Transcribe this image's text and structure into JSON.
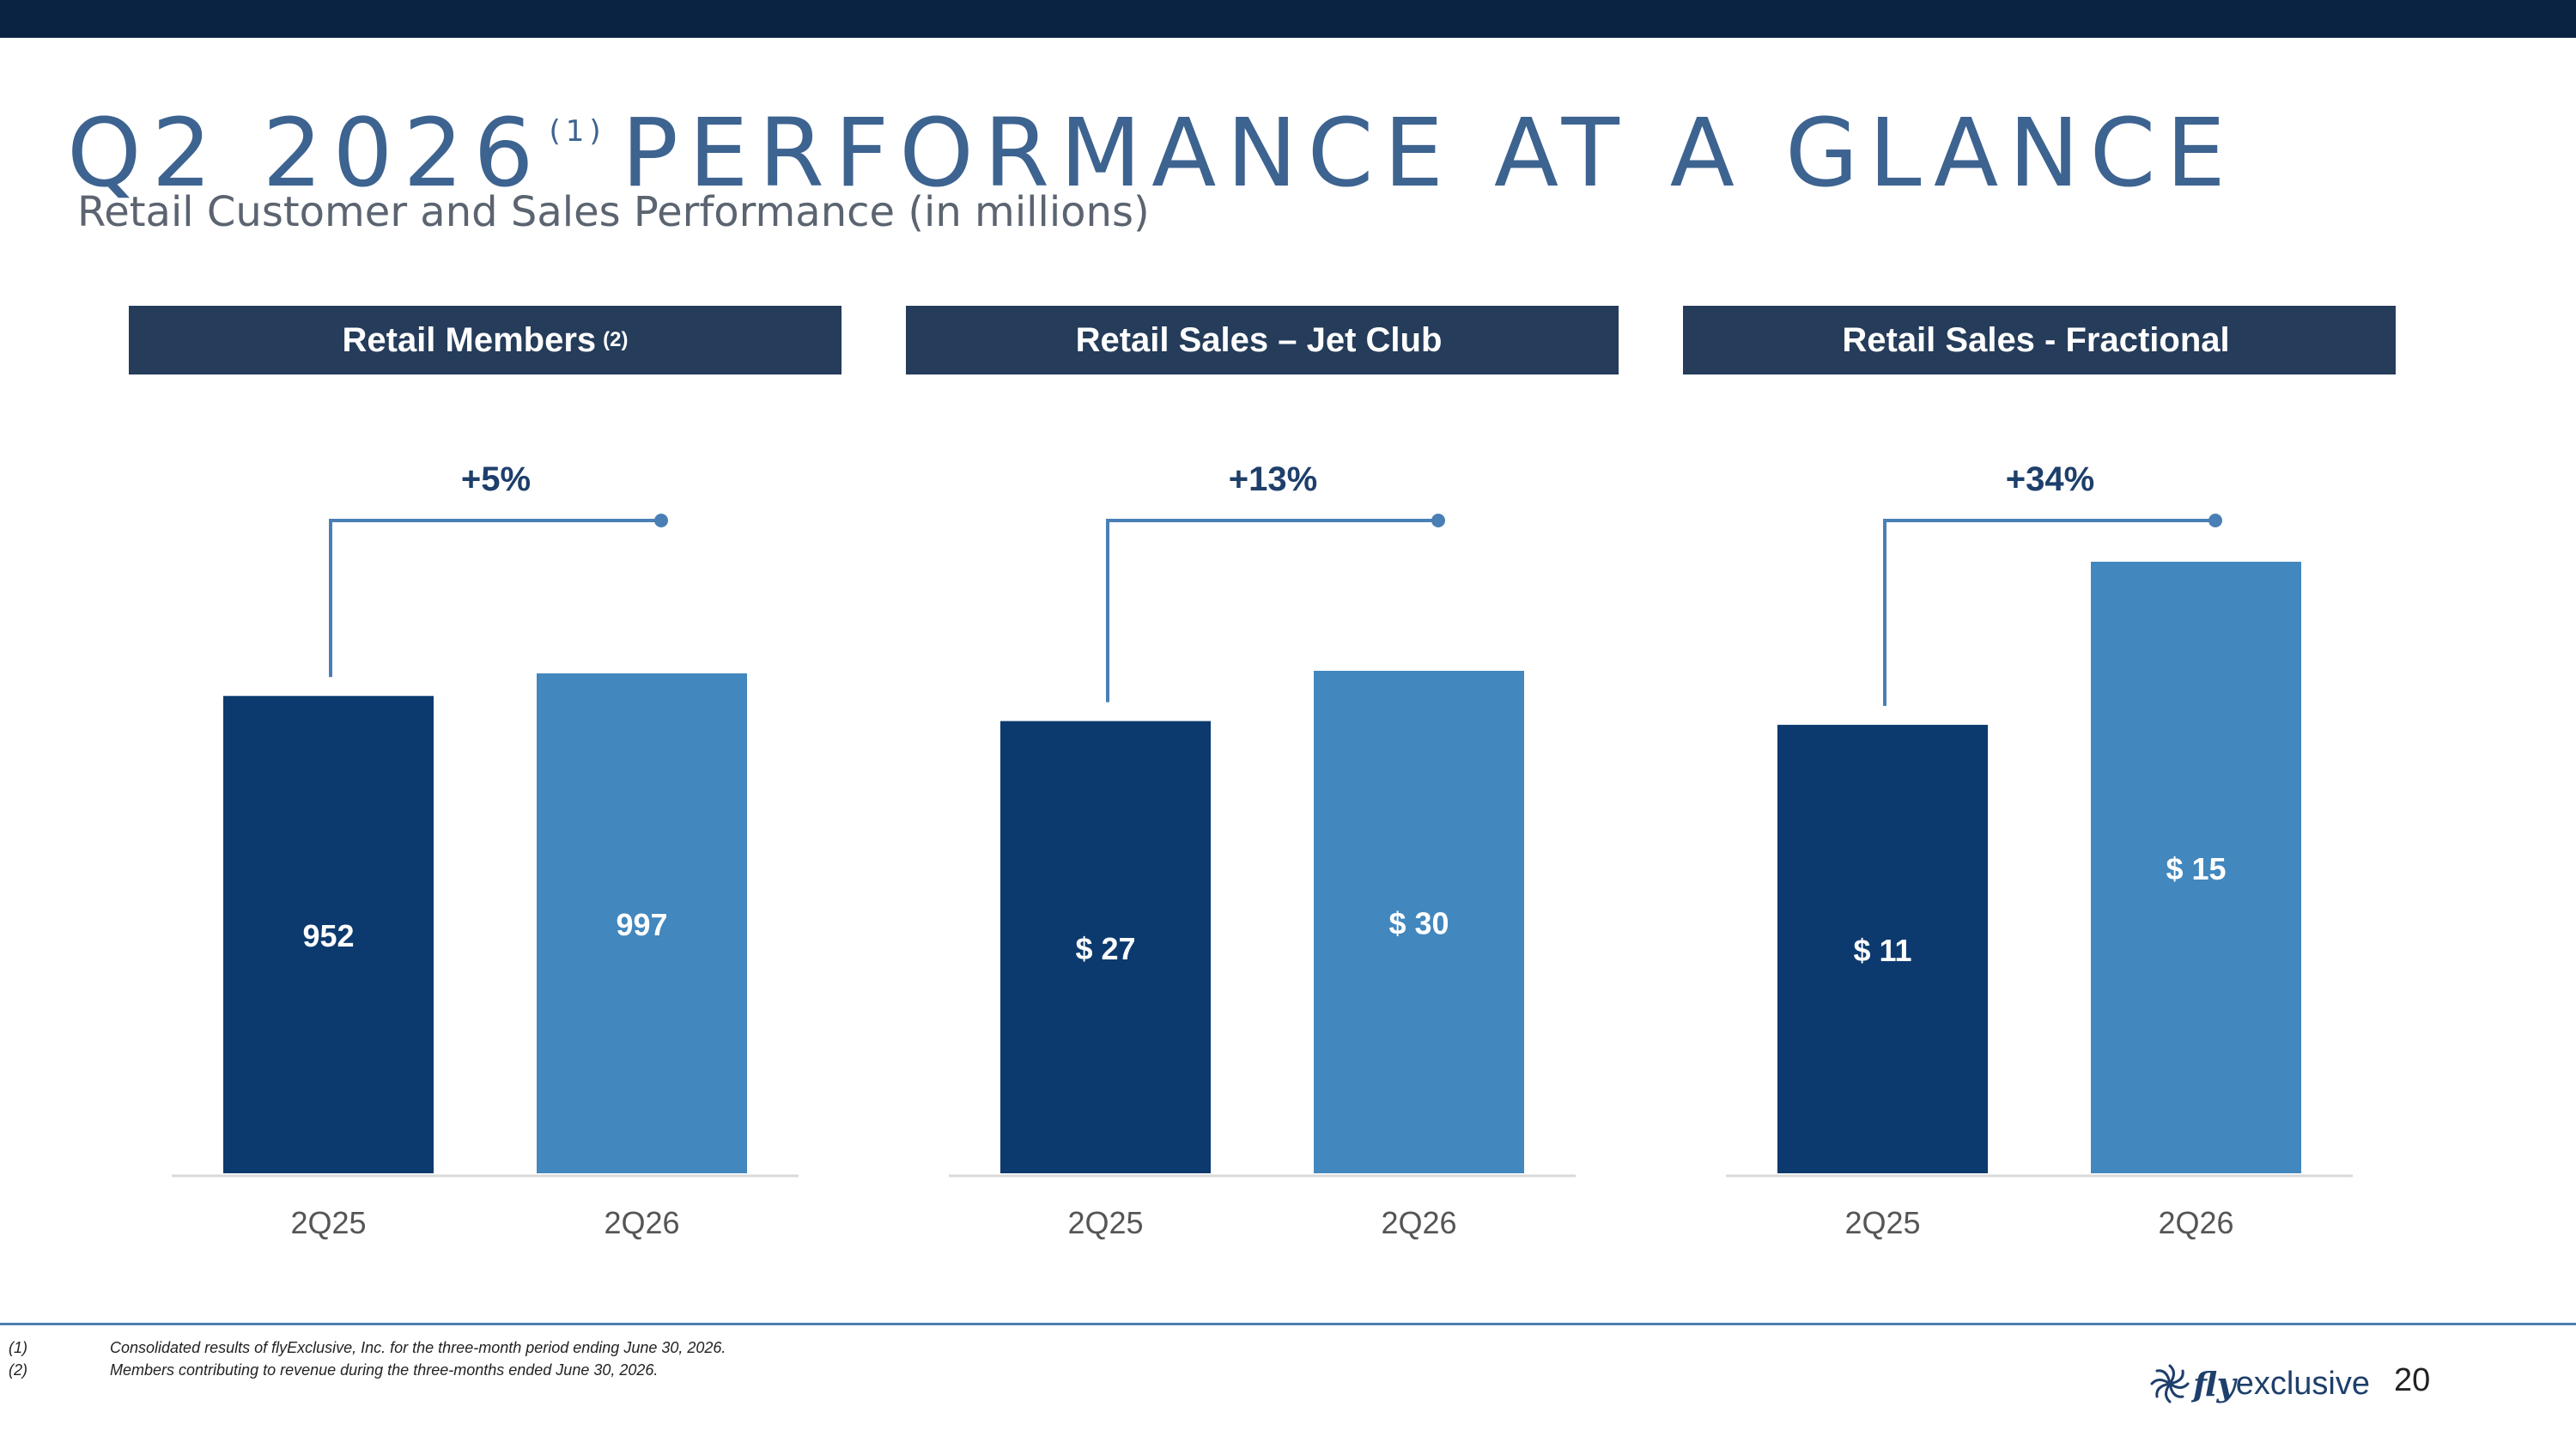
{
  "title": {
    "main": "Q2 2026",
    "sup": "(1)",
    "rest": "PERFORMANCE AT A GLANCE"
  },
  "subtitle": "Retail Customer and Sales Performance (in millions)",
  "colors": {
    "prior": "#0c3a6e",
    "current": "#4287bd",
    "header": "#253c5a",
    "connector": "#4a7fb5"
  },
  "chart_data": [
    {
      "type": "bar",
      "title": "Retail Members",
      "title_sup": "(2)",
      "categories": [
        "2Q25",
        "2Q26"
      ],
      "values": [
        952,
        997
      ],
      "data_labels": [
        "952",
        "997"
      ],
      "change": "+5%"
    },
    {
      "type": "bar",
      "title": "Retail Sales – Jet Club",
      "title_sup": "",
      "categories": [
        "2Q25",
        "2Q26"
      ],
      "values": [
        27,
        30
      ],
      "data_labels": [
        "$ 27",
        "$ 30"
      ],
      "change": "+13%"
    },
    {
      "type": "bar",
      "title": "Retail Sales - Fractional",
      "title_sup": "",
      "categories": [
        "2Q25",
        "2Q26"
      ],
      "values": [
        11,
        15
      ],
      "data_labels": [
        "$ 11",
        "$ 15"
      ],
      "change": "+34%"
    }
  ],
  "footnotes": [
    {
      "num": "(1)",
      "text": "Consolidated results of flyExclusive, Inc. for the three-month period ending June 30, 2026."
    },
    {
      "num": "(2)",
      "text": "Members contributing to revenue during the three-months ended June 30, 2026."
    }
  ],
  "brand": {
    "fly": "fly",
    "rest": "exclusive",
    "icon": "propeller-logo-icon"
  },
  "page_number": "20"
}
